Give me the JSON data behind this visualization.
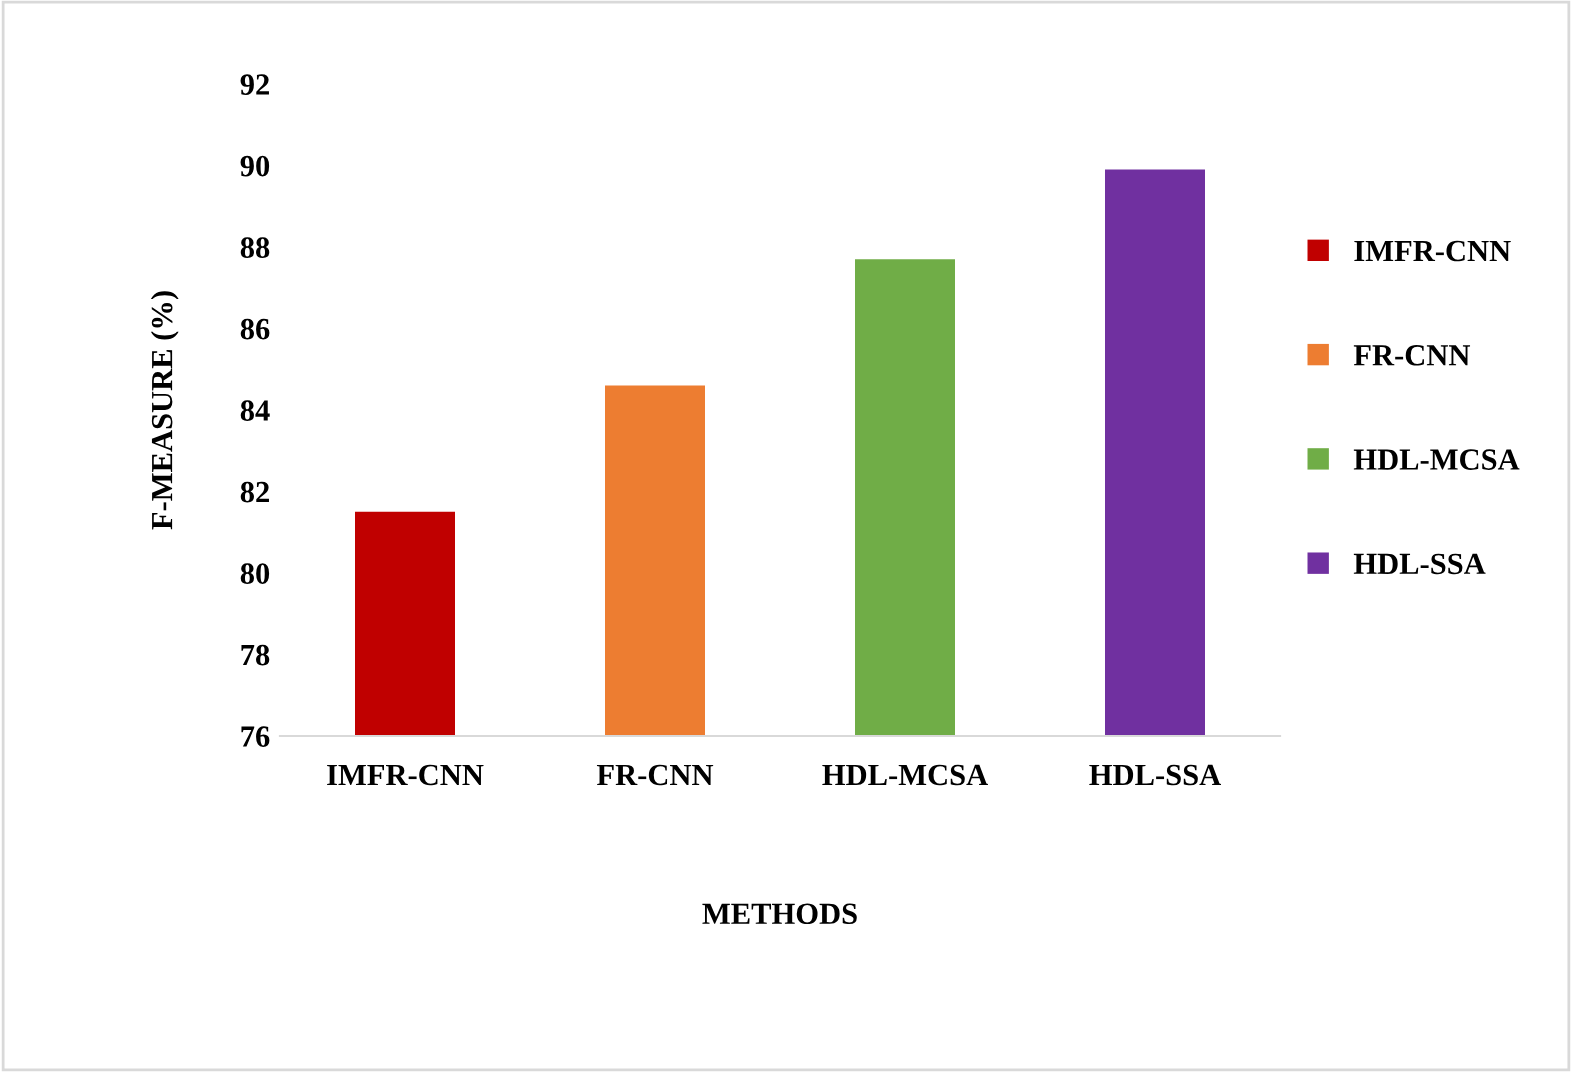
{
  "chart_data": {
    "type": "bar",
    "xlabel": "METHODS",
    "ylabel": "F-MEASURE (%)",
    "categories": [
      "IMFR-CNN",
      "FR-CNN",
      "HDL-MCSA",
      "HDL-SSA"
    ],
    "series": [
      {
        "name": "IMFR-CNN",
        "color": "#c00000",
        "values": [
          81.5,
          null,
          null,
          null
        ]
      },
      {
        "name": "FR-CNN",
        "color": "#ed7d31",
        "values": [
          null,
          84.6,
          null,
          null
        ]
      },
      {
        "name": "HDL-MCSA",
        "color": "#70ad47",
        "values": [
          null,
          null,
          87.7,
          null
        ]
      },
      {
        "name": "HDL-SSA",
        "color": "#7030a0",
        "values": [
          null,
          null,
          null,
          89.9
        ]
      }
    ],
    "ylim": [
      76,
      92
    ],
    "yticks": [
      76,
      78,
      80,
      82,
      84,
      86,
      88,
      90,
      92
    ],
    "grid": false,
    "legend": "right"
  }
}
